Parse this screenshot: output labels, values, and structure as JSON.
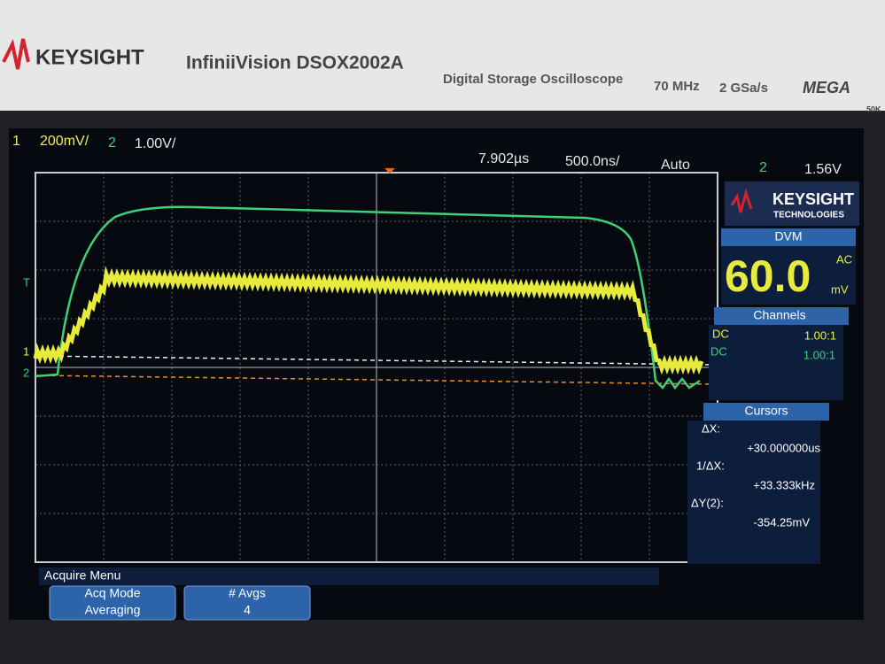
{
  "header": {
    "brand": "KEYSIGHT",
    "model": "InfiniiVision DSOX2002A",
    "description": "Digital Storage Oscilloscope",
    "bandwidth": "70 MHz",
    "sample_rate": "2 GSa/s",
    "badge": "MEGA",
    "badge_sub": "50K"
  },
  "status": {
    "ch1_num": "1",
    "ch1_scale": "200mV/",
    "ch2_num": "2",
    "ch2_scale": "1.00V/",
    "delay": "7.902µs",
    "timebase": "500.0ns/",
    "trigger_mode": "Auto",
    "trigger_source": "2",
    "trigger_level": "1.56V"
  },
  "markers": {
    "ch1": "1",
    "ch2": "2",
    "trigger": "T"
  },
  "sidebar": {
    "logo": "KEYSIGHT",
    "logo_sub": "TECHNOLOGIES",
    "dvm_title": "DVM",
    "dvm_value": "60.0",
    "dvm_mode": "AC",
    "dvm_unit": "mV",
    "channels_title": "Channels",
    "channels": [
      {
        "coupling": "DC",
        "probe": "1.00:1"
      },
      {
        "coupling": "DC",
        "probe": "1.00:1"
      }
    ],
    "cursors_title": "Cursors",
    "cursors": [
      {
        "label": "ΔX:",
        "value": "+30.000000us"
      },
      {
        "label": "1/ΔX:",
        "value": "+33.333kHz"
      },
      {
        "label": "ΔY(2):",
        "value": "-354.25mV"
      }
    ]
  },
  "menu": {
    "title": "Acquire Menu",
    "buttons": [
      {
        "label": "Acq Mode",
        "value": "Averaging"
      },
      {
        "label": "# Avgs",
        "value": "4"
      }
    ]
  }
}
